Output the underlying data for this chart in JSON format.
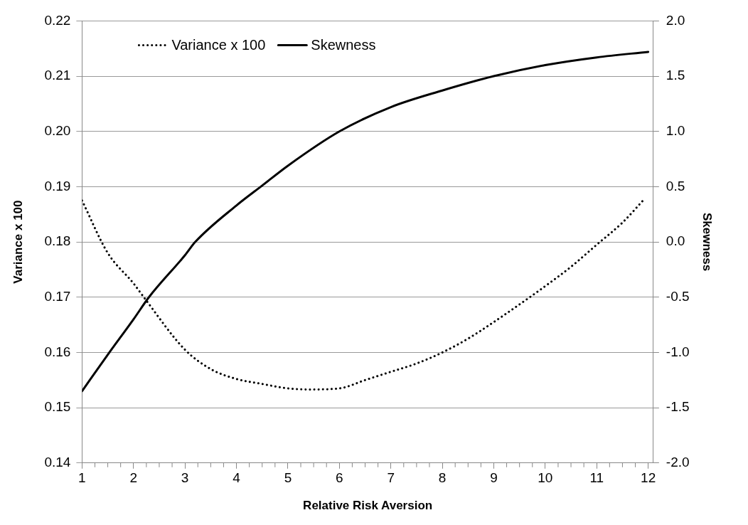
{
  "chart_data": {
    "type": "line",
    "xlabel": "Relative Risk Aversion",
    "ylabel": "Variance x 100",
    "y2label": "Skewness",
    "xlim": [
      1,
      12.1
    ],
    "xticks": [
      1,
      2,
      3,
      4,
      5,
      6,
      7,
      8,
      9,
      10,
      11,
      12
    ],
    "ylim": [
      0.14,
      0.22
    ],
    "yticks": [
      0.14,
      0.15,
      0.16,
      0.17,
      0.18,
      0.19,
      {
        "value": 0.2,
        "label": "0.20"
      },
      0.21,
      0.22
    ],
    "y2lim": [
      -2,
      2
    ],
    "y2ticks": [
      {
        "value": -2,
        "label": "-2.0"
      },
      {
        "value": -1.5,
        "label": "-1.5"
      },
      {
        "value": -1,
        "label": "-1.0"
      },
      {
        "value": -0.5,
        "label": "-0.5"
      },
      {
        "value": 0,
        "label": "0.0"
      },
      {
        "value": 0.5,
        "label": "0.5"
      },
      {
        "value": 1,
        "label": "1.0"
      },
      {
        "value": 1.5,
        "label": "1.5"
      },
      {
        "value": 2,
        "label": "2.0"
      }
    ],
    "grid": "y",
    "legend": "top left",
    "marker": "none",
    "series": [
      {
        "name": "Variance x 100",
        "color": "#000000",
        "line_style": "dotted",
        "x": [
          1,
          1.5,
          2,
          2.2,
          3,
          3.5,
          4,
          4.5,
          5,
          5.4,
          6,
          6.5,
          7,
          7.5,
          8,
          8.5,
          9,
          9.7,
          10,
          10.5,
          11,
          11.5,
          11.9
        ],
        "values": [
          0.1875,
          0.178,
          0.1725,
          0.17,
          0.1605,
          0.157,
          0.1552,
          0.1543,
          0.1535,
          0.1533,
          0.1535,
          0.155,
          0.1565,
          0.158,
          0.16,
          0.1625,
          0.1655,
          0.17,
          0.172,
          0.1755,
          0.1795,
          0.1835,
          0.1875
        ]
      },
      {
        "name": "Skewness",
        "color": "#000000",
        "line_style": "solid",
        "axis": "y2",
        "x": [
          1,
          1.5,
          2,
          2.3,
          3,
          3.2,
          4,
          4.5,
          5,
          6,
          7,
          8,
          9,
          10,
          11,
          12
        ],
        "values": [
          -1.35,
          -1.02,
          -0.7,
          -0.5,
          -0.12,
          0,
          0.33,
          0.51,
          0.69,
          1.0,
          1.22,
          1.37,
          1.5,
          1.6,
          1.67,
          1.72
        ]
      }
    ]
  }
}
